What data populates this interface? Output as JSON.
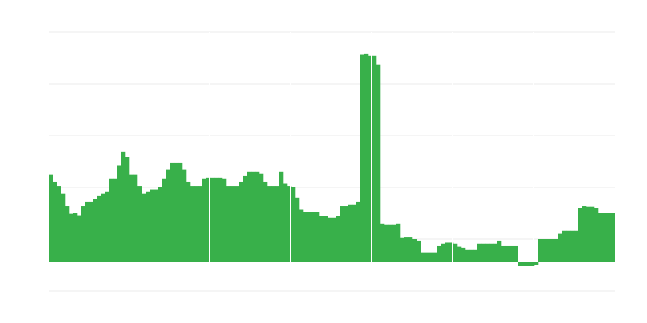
{
  "chart_data": {
    "type": "bar",
    "title": "",
    "xlabel": "",
    "ylabel": "",
    "ylim": [
      -0.55,
      4.45
    ],
    "grid": true,
    "legend": "none",
    "colors": {
      "bar": "#38b04a",
      "grid": "#ebebeb",
      "background": "#ffffff"
    },
    "values": [
      1.69,
      1.56,
      1.48,
      1.33,
      1.09,
      0.94,
      0.95,
      0.91,
      1.09,
      1.17,
      1.17,
      1.23,
      1.28,
      1.33,
      1.36,
      1.61,
      1.61,
      1.88,
      2.14,
      2.03,
      1.69,
      1.69,
      1.48,
      1.33,
      1.36,
      1.41,
      1.41,
      1.45,
      1.61,
      1.8,
      1.92,
      1.92,
      1.92,
      1.8,
      1.56,
      1.48,
      1.48,
      1.48,
      1.61,
      1.64,
      1.64,
      1.64,
      1.64,
      1.61,
      1.48,
      1.48,
      1.48,
      1.56,
      1.67,
      1.75,
      1.75,
      1.75,
      1.72,
      1.56,
      1.48,
      1.48,
      1.48,
      1.75,
      1.52,
      1.48,
      1.45,
      1.25,
      1.02,
      0.98,
      0.98,
      0.98,
      0.98,
      0.89,
      0.89,
      0.86,
      0.86,
      0.89,
      1.09,
      1.09,
      1.11,
      1.11,
      1.17,
      4.02,
      4.03,
      4.0,
      4.0,
      3.83,
      0.75,
      0.72,
      0.72,
      0.72,
      0.75,
      0.47,
      0.48,
      0.48,
      0.45,
      0.42,
      0.19,
      0.19,
      0.19,
      0.19,
      0.31,
      0.36,
      0.38,
      0.38,
      0.36,
      0.3,
      0.28,
      0.25,
      0.25,
      0.25,
      0.36,
      0.36,
      0.36,
      0.36,
      0.36,
      0.42,
      0.31,
      0.31,
      0.31,
      0.31,
      -0.08,
      -0.08,
      -0.08,
      -0.08,
      -0.05,
      0.45,
      0.45,
      0.45,
      0.45,
      0.45,
      0.55,
      0.61,
      0.61,
      0.61,
      0.61,
      1.05,
      1.09,
      1.08,
      1.08,
      1.05,
      0.95,
      0.95,
      0.95,
      0.95
    ]
  }
}
